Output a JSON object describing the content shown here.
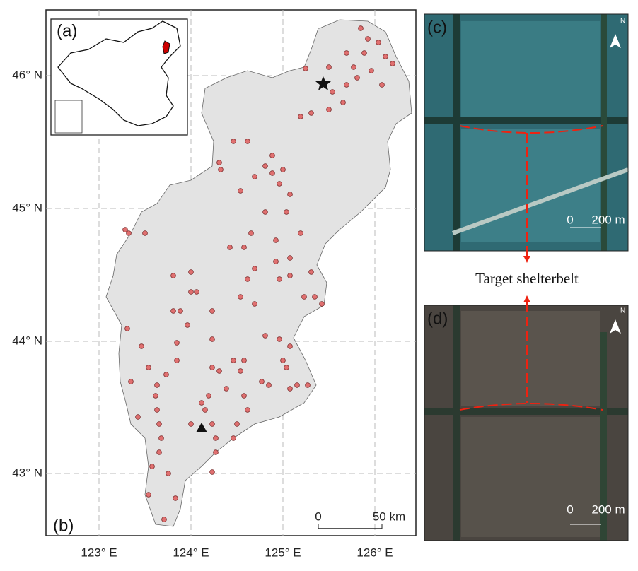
{
  "panels": {
    "a": "(a)",
    "b": "(b)",
    "c": "(c)",
    "d": "(d)"
  },
  "map": {
    "lon_ticks": [
      "123° E",
      "124° E",
      "125° E",
      "126° E"
    ],
    "lat_ticks": [
      "46° N",
      "45° N",
      "44° N",
      "43° N"
    ],
    "scale_bar": {
      "start": "0",
      "end": "50 km"
    }
  },
  "image_c": {
    "north": "N",
    "scale_bar": {
      "start": "0",
      "end": "200 m"
    }
  },
  "image_d": {
    "north": "N",
    "scale_bar": {
      "start": "0",
      "end": "200 m"
    }
  },
  "annotation": "Target shelterbelt"
}
